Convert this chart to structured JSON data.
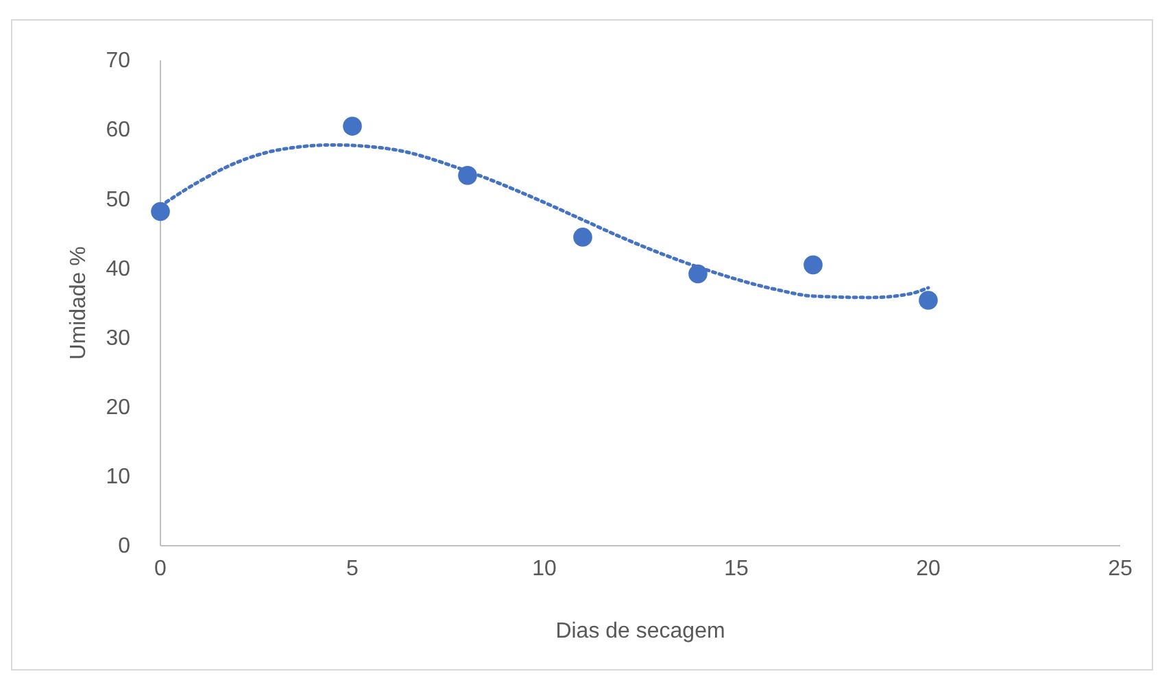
{
  "chart_data": {
    "type": "scatter",
    "xlabel": "Dias de secagem",
    "ylabel": "Umidade %",
    "xlim": [
      0,
      25
    ],
    "xticks": [
      0,
      5,
      10,
      15,
      20,
      25
    ],
    "ylim": [
      0,
      70
    ],
    "yticks": [
      0,
      10,
      20,
      30,
      40,
      50,
      60,
      70
    ],
    "grid": false,
    "series": [
      {
        "color": "#4472c4",
        "marker": "circle",
        "x": [
          0,
          5,
          8,
          11,
          14,
          17,
          20
        ],
        "values": [
          48.2,
          60.5,
          53.4,
          44.5,
          39.2,
          40.5,
          35.4
        ]
      },
      {
        "type": "line",
        "color": "#4472c4",
        "line_style": "dotted",
        "marker": "none",
        "x": [
          0,
          1,
          2,
          3,
          4.5,
          6,
          8,
          10,
          11,
          12,
          14,
          16,
          17,
          18.5,
          19.5,
          20
        ],
        "values": [
          49,
          52.5,
          55.3,
          57,
          57.8,
          57.2,
          54,
          49.5,
          47,
          44.5,
          40.2,
          37,
          36,
          35.8,
          36.3,
          37.2
        ]
      }
    ]
  }
}
